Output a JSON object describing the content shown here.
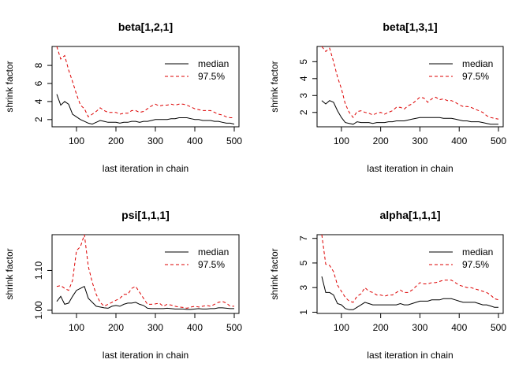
{
  "chart_data": [
    {
      "type": "line",
      "title": "beta[1,2,1]",
      "xlabel": "last iteration in chain",
      "ylabel": "shrink factor",
      "xlim": [
        38,
        512
      ],
      "ylim": [
        1.2,
        10.1
      ],
      "xticks": [
        100,
        200,
        300,
        400,
        500
      ],
      "yticks": [
        2,
        4,
        6,
        8
      ],
      "legend": {
        "position": "top-right",
        "entries": [
          "median",
          "97.5%"
        ]
      },
      "x": [
        50,
        60,
        70,
        80,
        90,
        100,
        110,
        120,
        130,
        140,
        150,
        160,
        170,
        180,
        190,
        200,
        210,
        220,
        230,
        240,
        250,
        260,
        270,
        280,
        290,
        300,
        310,
        320,
        330,
        340,
        350,
        360,
        370,
        380,
        390,
        400,
        410,
        420,
        430,
        440,
        450,
        460,
        470,
        480,
        490,
        500
      ],
      "series": [
        {
          "name": "median",
          "color": "#000000",
          "dash": false,
          "values": [
            4.8,
            3.6,
            4.0,
            3.7,
            2.6,
            2.3,
            2.0,
            1.8,
            1.6,
            1.5,
            1.7,
            1.9,
            1.8,
            1.7,
            1.7,
            1.7,
            1.6,
            1.7,
            1.7,
            1.8,
            1.8,
            1.7,
            1.8,
            1.8,
            1.9,
            2.0,
            2.0,
            2.0,
            2.0,
            2.1,
            2.1,
            2.2,
            2.2,
            2.2,
            2.1,
            2.0,
            2.0,
            1.9,
            1.9,
            1.9,
            1.8,
            1.8,
            1.7,
            1.6,
            1.6,
            1.5
          ]
        },
        {
          "name": "97.5%",
          "color": "#dd0000",
          "dash": true,
          "values": [
            10.1,
            8.7,
            9.1,
            7.5,
            6.2,
            4.8,
            3.6,
            3.2,
            2.3,
            2.6,
            2.9,
            3.3,
            3.0,
            2.8,
            2.8,
            2.8,
            2.6,
            2.7,
            2.7,
            3.0,
            3.0,
            2.8,
            2.9,
            3.2,
            3.5,
            3.7,
            3.5,
            3.6,
            3.6,
            3.7,
            3.6,
            3.7,
            3.7,
            3.6,
            3.4,
            3.2,
            3.1,
            3.0,
            3.0,
            3.0,
            2.8,
            2.6,
            2.5,
            2.3,
            2.2,
            2.2
          ]
        }
      ]
    },
    {
      "type": "line",
      "title": "beta[1,3,1]",
      "xlabel": "last iteration in chain",
      "ylabel": "shrink factor",
      "xlim": [
        38,
        512
      ],
      "ylim": [
        1.15,
        5.9
      ],
      "xticks": [
        100,
        200,
        300,
        400,
        500
      ],
      "yticks": [
        2,
        3,
        4,
        5
      ],
      "legend": {
        "position": "top-right",
        "entries": [
          "median",
          "97.5%"
        ]
      },
      "x": [
        50,
        60,
        70,
        80,
        90,
        100,
        110,
        120,
        130,
        140,
        150,
        160,
        170,
        180,
        190,
        200,
        210,
        220,
        230,
        240,
        250,
        260,
        270,
        280,
        290,
        300,
        310,
        320,
        330,
        340,
        350,
        360,
        370,
        380,
        390,
        400,
        410,
        420,
        430,
        440,
        450,
        460,
        470,
        480,
        490,
        500
      ],
      "series": [
        {
          "name": "median",
          "color": "#000000",
          "dash": false,
          "values": [
            2.7,
            2.5,
            2.7,
            2.6,
            2.1,
            1.7,
            1.4,
            1.35,
            1.3,
            1.45,
            1.4,
            1.4,
            1.4,
            1.35,
            1.4,
            1.4,
            1.4,
            1.45,
            1.45,
            1.5,
            1.5,
            1.5,
            1.55,
            1.6,
            1.65,
            1.7,
            1.7,
            1.7,
            1.7,
            1.7,
            1.7,
            1.65,
            1.65,
            1.65,
            1.6,
            1.55,
            1.5,
            1.5,
            1.45,
            1.45,
            1.45,
            1.4,
            1.35,
            1.3,
            1.3,
            1.3
          ]
        },
        {
          "name": "97.5%",
          "color": "#dd0000",
          "dash": true,
          "values": [
            5.9,
            5.6,
            5.8,
            5.0,
            4.1,
            3.4,
            2.5,
            2.0,
            1.7,
            2.05,
            2.1,
            2.0,
            1.95,
            1.85,
            1.95,
            2.0,
            1.9,
            2.0,
            2.1,
            2.3,
            2.3,
            2.2,
            2.4,
            2.5,
            2.7,
            2.9,
            2.85,
            2.6,
            2.8,
            2.9,
            2.75,
            2.8,
            2.7,
            2.7,
            2.6,
            2.45,
            2.35,
            2.35,
            2.3,
            2.2,
            2.1,
            2.0,
            1.8,
            1.7,
            1.65,
            1.6
          ]
        }
      ]
    },
    {
      "type": "line",
      "title": "psi[1,1,1]",
      "xlabel": "last iteration in chain",
      "ylabel": "shrink factor",
      "xlim": [
        38,
        512
      ],
      "ylim": [
        0.992,
        1.19
      ],
      "xticks": [
        100,
        200,
        300,
        400,
        500
      ],
      "yticks": [
        1.0,
        1.1
      ],
      "ytick_labels": [
        "1.00",
        "1.10"
      ],
      "legend": {
        "position": "top-right",
        "entries": [
          "median",
          "97.5%"
        ]
      },
      "x": [
        50,
        60,
        70,
        80,
        90,
        100,
        110,
        120,
        130,
        140,
        150,
        160,
        170,
        180,
        190,
        200,
        210,
        220,
        230,
        240,
        250,
        260,
        270,
        280,
        290,
        300,
        310,
        320,
        330,
        340,
        350,
        360,
        370,
        380,
        390,
        400,
        410,
        420,
        430,
        440,
        450,
        460,
        470,
        480,
        490,
        500
      ],
      "series": [
        {
          "name": "median",
          "color": "#000000",
          "dash": false,
          "values": [
            1.022,
            1.035,
            1.015,
            1.018,
            1.035,
            1.05,
            1.055,
            1.06,
            1.03,
            1.02,
            1.01,
            1.008,
            1.006,
            1.005,
            1.01,
            1.012,
            1.01,
            1.015,
            1.018,
            1.018,
            1.02,
            1.015,
            1.012,
            1.005,
            1.004,
            1.004,
            1.004,
            1.004,
            1.005,
            1.004,
            1.003,
            1.003,
            1.003,
            1.002,
            1.002,
            1.003,
            1.004,
            1.003,
            1.003,
            1.004,
            1.004,
            1.006,
            1.006,
            1.005,
            1.004,
            1.004
          ]
        },
        {
          "name": "97.5%",
          "color": "#dd0000",
          "dash": true,
          "values": [
            1.06,
            1.062,
            1.055,
            1.05,
            1.075,
            1.15,
            1.16,
            1.19,
            1.11,
            1.07,
            1.04,
            1.02,
            1.01,
            1.015,
            1.02,
            1.025,
            1.03,
            1.04,
            1.04,
            1.055,
            1.06,
            1.045,
            1.03,
            1.015,
            1.015,
            1.016,
            1.018,
            1.01,
            1.015,
            1.013,
            1.01,
            1.008,
            1.007,
            1.005,
            1.008,
            1.01,
            1.008,
            1.01,
            1.012,
            1.01,
            1.015,
            1.02,
            1.022,
            1.018,
            1.01,
            1.01
          ]
        }
      ]
    },
    {
      "type": "line",
      "title": "alpha[1,1,1]",
      "xlabel": "last iteration in chain",
      "ylabel": "shrink factor",
      "xlim": [
        38,
        512
      ],
      "ylim": [
        0.9,
        7.3
      ],
      "xticks": [
        100,
        200,
        300,
        400,
        500
      ],
      "yticks": [
        1,
        3,
        5,
        7
      ],
      "legend": {
        "position": "top-right",
        "entries": [
          "median",
          "97.5%"
        ]
      },
      "x": [
        50,
        60,
        70,
        80,
        90,
        100,
        110,
        120,
        130,
        140,
        150,
        160,
        170,
        180,
        190,
        200,
        210,
        220,
        230,
        240,
        250,
        260,
        270,
        280,
        290,
        300,
        310,
        320,
        330,
        340,
        350,
        360,
        370,
        380,
        390,
        400,
        410,
        420,
        430,
        440,
        450,
        460,
        470,
        480,
        490,
        500
      ],
      "series": [
        {
          "name": "median",
          "color": "#000000",
          "dash": false,
          "values": [
            3.9,
            2.6,
            2.6,
            2.4,
            1.7,
            1.6,
            1.3,
            1.2,
            1.2,
            1.4,
            1.6,
            1.8,
            1.7,
            1.6,
            1.6,
            1.6,
            1.6,
            1.6,
            1.6,
            1.6,
            1.7,
            1.6,
            1.6,
            1.7,
            1.8,
            1.9,
            1.9,
            1.9,
            2.0,
            2.0,
            2.0,
            2.1,
            2.1,
            2.1,
            2.0,
            1.9,
            1.8,
            1.8,
            1.8,
            1.8,
            1.7,
            1.6,
            1.6,
            1.5,
            1.4,
            1.4
          ]
        },
        {
          "name": "97.5%",
          "color": "#dd0000",
          "dash": true,
          "values": [
            7.3,
            4.9,
            4.8,
            4.3,
            3.2,
            2.7,
            2.2,
            1.9,
            1.8,
            2.3,
            2.5,
            3.0,
            2.7,
            2.6,
            2.4,
            2.4,
            2.3,
            2.4,
            2.4,
            2.6,
            2.8,
            2.6,
            2.6,
            2.8,
            3.1,
            3.4,
            3.3,
            3.3,
            3.4,
            3.4,
            3.5,
            3.6,
            3.6,
            3.6,
            3.4,
            3.2,
            3.1,
            3.0,
            3.0,
            2.9,
            2.8,
            2.7,
            2.6,
            2.4,
            2.1,
            2.0
          ]
        }
      ]
    }
  ]
}
